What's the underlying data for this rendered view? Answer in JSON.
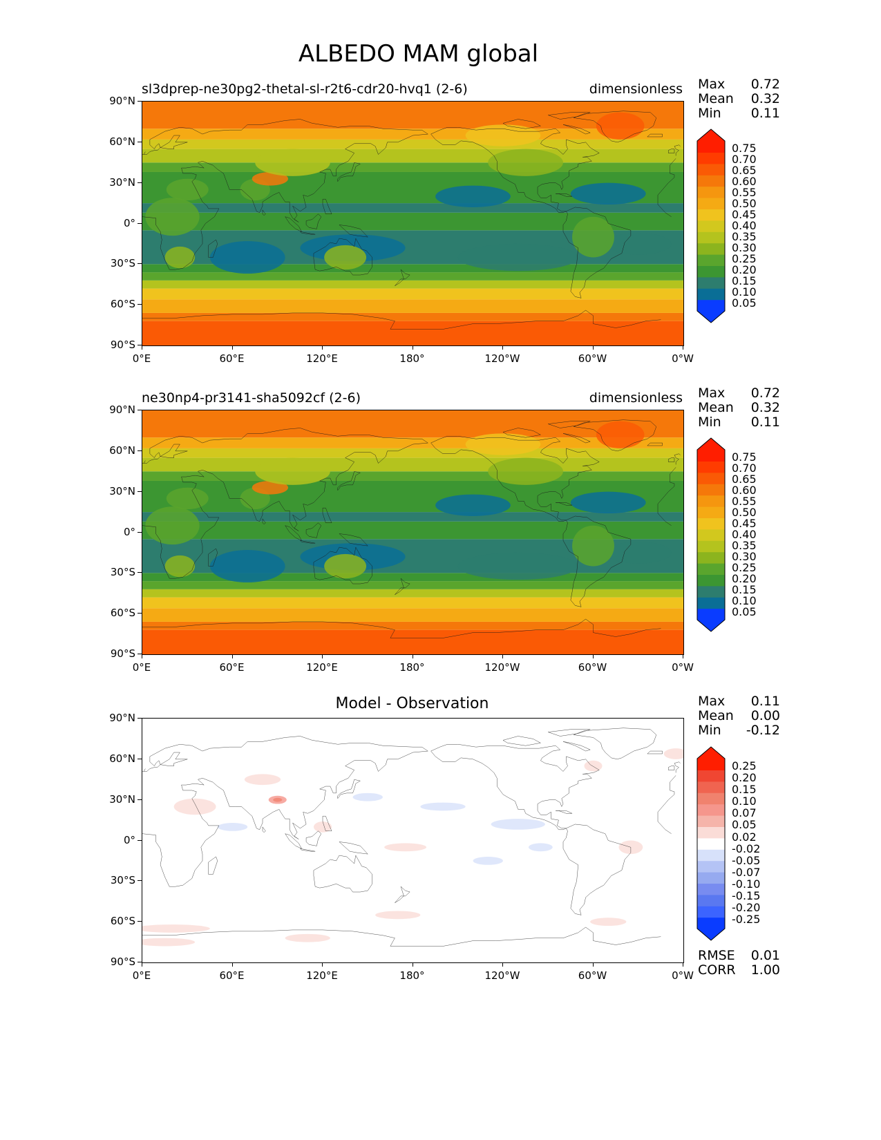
{
  "figure_title": "ALBEDO MAM global",
  "lat_ticks": [
    "90°N",
    "60°N",
    "30°N",
    "0°",
    "30°S",
    "60°S",
    "90°S"
  ],
  "lon_ticks": [
    "0°E",
    "60°E",
    "120°E",
    "180°",
    "120°W",
    "60°W",
    "0°W"
  ],
  "panels": [
    {
      "title_left": "sl3dprep-ne30pg2-thetal-sl-r2t6-cdr20-hvq1 (2-6)",
      "title_center": "",
      "units": "dimensionless",
      "stats": [
        {
          "label": "Max",
          "value": "0.72"
        },
        {
          "label": "Mean",
          "value": "0.32"
        },
        {
          "label": "Min",
          "value": "0.11"
        }
      ],
      "colorbar_labels": [
        "0.75",
        "0.70",
        "0.65",
        "0.60",
        "0.55",
        "0.50",
        "0.45",
        "0.40",
        "0.35",
        "0.30",
        "0.25",
        "0.20",
        "0.15",
        "0.10",
        "0.05"
      ]
    },
    {
      "title_left": "ne30np4-pr3141-sha5092cf (2-6)",
      "title_center": "",
      "units": "dimensionless",
      "stats": [
        {
          "label": "Max",
          "value": "0.72"
        },
        {
          "label": "Mean",
          "value": "0.32"
        },
        {
          "label": "Min",
          "value": "0.11"
        }
      ],
      "colorbar_labels": [
        "0.75",
        "0.70",
        "0.65",
        "0.60",
        "0.55",
        "0.50",
        "0.45",
        "0.40",
        "0.35",
        "0.30",
        "0.25",
        "0.20",
        "0.15",
        "0.10",
        "0.05"
      ]
    },
    {
      "title_left": "",
      "title_center": "Model - Observation",
      "units": "",
      "stats": [
        {
          "label": "Max",
          "value": "0.11"
        },
        {
          "label": "Mean",
          "value": "0.00"
        },
        {
          "label": "Min",
          "value": "-0.12"
        }
      ],
      "colorbar_labels": [
        "0.25",
        "0.20",
        "0.15",
        "0.10",
        "0.07",
        "0.05",
        "0.02",
        "-0.02",
        "-0.05",
        "-0.07",
        "-0.10",
        "-0.15",
        "-0.20",
        "-0.25"
      ],
      "metrics": [
        {
          "label": "RMSE",
          "value": "0.01"
        },
        {
          "label": "CORR",
          "value": "1.00"
        }
      ]
    }
  ],
  "colors": {
    "field_scale": [
      "#0a3cff",
      "#0a6e96",
      "#2d7d6e",
      "#3c9632",
      "#5aa52d",
      "#8cb41e",
      "#b4c31e",
      "#d2c81e",
      "#f0c31e",
      "#f5aa14",
      "#f5960f",
      "#f5780a",
      "#fa5a05",
      "#ff3c00",
      "#ff1e00"
    ],
    "diff_scale": [
      "#0a3cff",
      "#3c64ff",
      "#5a78f0",
      "#788cf0",
      "#96aaf0",
      "#b4c3f5",
      "#d7e1fa",
      "#ffffff",
      "#fadcd7",
      "#f5b4aa",
      "#f5968c",
      "#f0826e",
      "#f06450",
      "#f04632",
      "#ff1e00"
    ]
  },
  "chart_data": [
    {
      "type": "heatmap",
      "title": "sl3dprep-ne30pg2-thetal-sl-r2t6-cdr20-hvq1 (2-6)",
      "units": "dimensionless",
      "projection": "PlateCarree global",
      "xlim": [
        0,
        360
      ],
      "ylim": [
        -90,
        90
      ],
      "levels": [
        0.05,
        0.1,
        0.15,
        0.2,
        0.25,
        0.3,
        0.35,
        0.4,
        0.45,
        0.5,
        0.55,
        0.6,
        0.65,
        0.7,
        0.75
      ],
      "stats": {
        "max": 0.72,
        "mean": 0.32,
        "min": 0.11
      }
    },
    {
      "type": "heatmap",
      "title": "ne30np4-pr3141-sha5092cf (2-6)",
      "units": "dimensionless",
      "projection": "PlateCarree global",
      "xlim": [
        0,
        360
      ],
      "ylim": [
        -90,
        90
      ],
      "levels": [
        0.05,
        0.1,
        0.15,
        0.2,
        0.25,
        0.3,
        0.35,
        0.4,
        0.45,
        0.5,
        0.55,
        0.6,
        0.65,
        0.7,
        0.75
      ],
      "stats": {
        "max": 0.72,
        "mean": 0.32,
        "min": 0.11
      }
    },
    {
      "type": "heatmap",
      "title": "Model - Observation",
      "projection": "PlateCarree global",
      "xlim": [
        0,
        360
      ],
      "ylim": [
        -90,
        90
      ],
      "levels": [
        -0.25,
        -0.2,
        -0.15,
        -0.1,
        -0.07,
        -0.05,
        -0.02,
        0.02,
        0.05,
        0.07,
        0.1,
        0.15,
        0.2,
        0.25
      ],
      "stats": {
        "max": 0.11,
        "mean": 0.0,
        "min": -0.12
      },
      "metrics": {
        "rmse": 0.01,
        "corr": 1.0
      }
    }
  ]
}
